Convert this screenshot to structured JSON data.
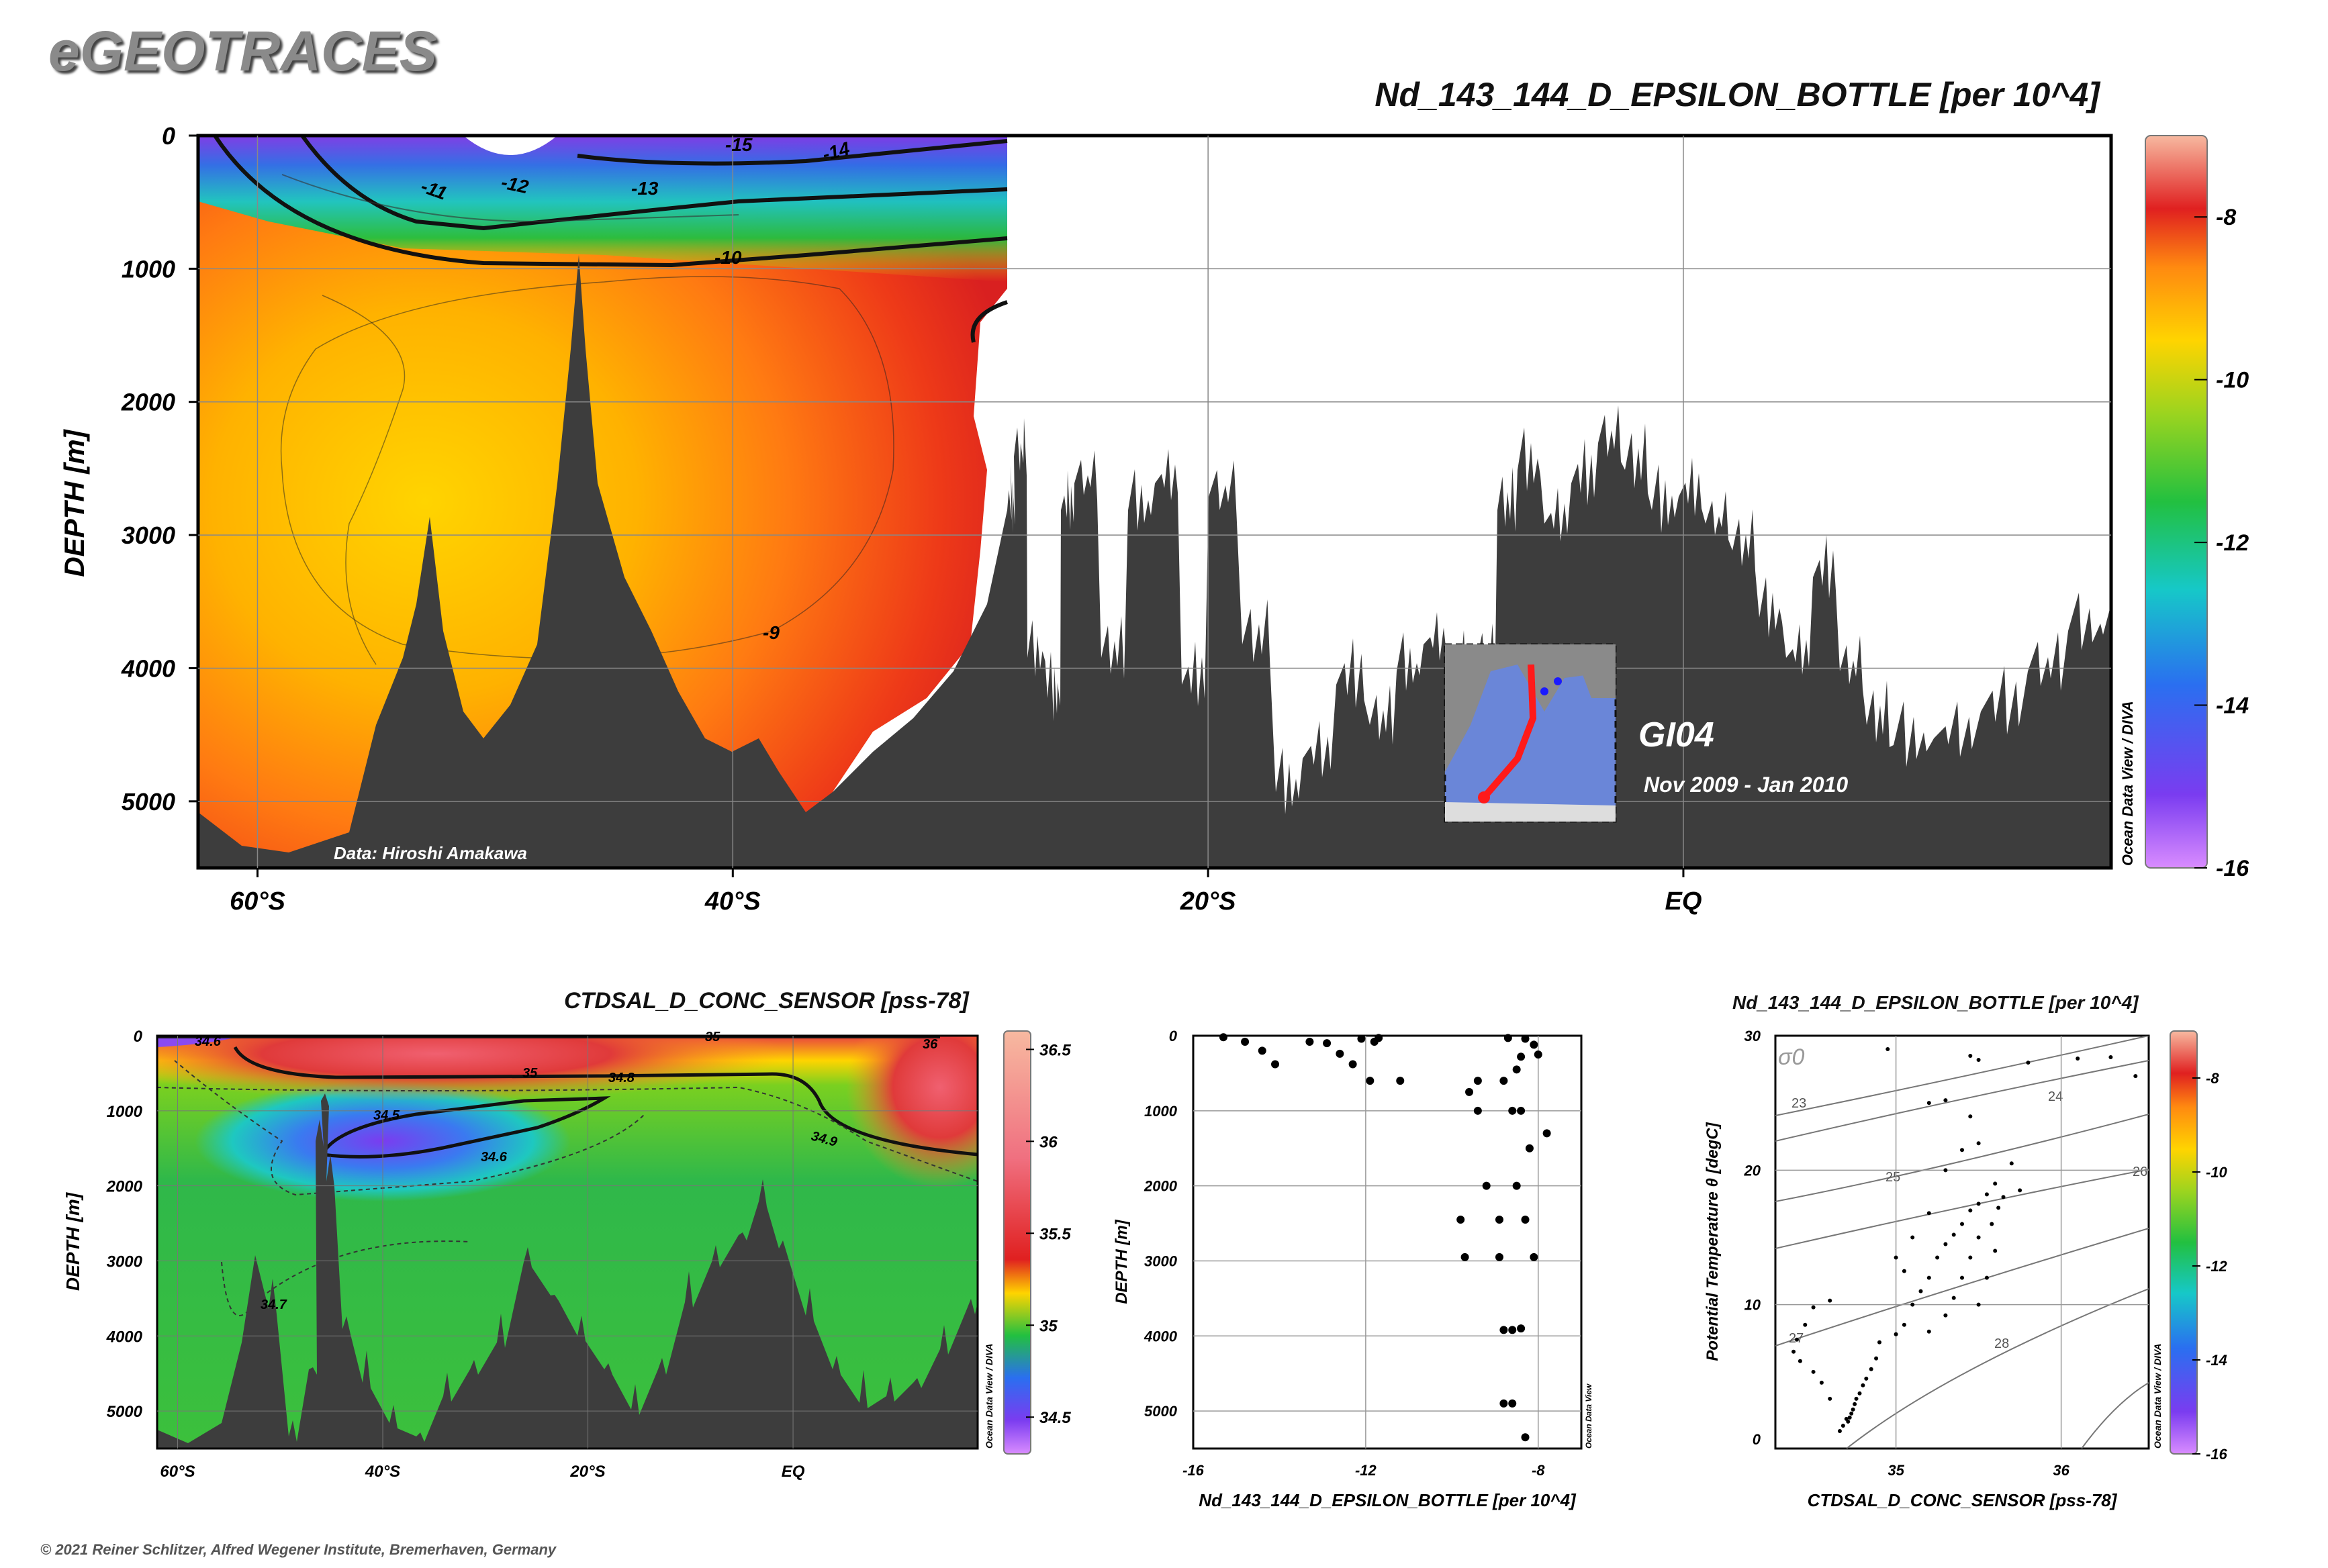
{
  "brand": "eGEOTRACES",
  "main_title": "Nd_143_144_D_EPSILON_BOTTLE [per 10^4]",
  "copyright": "© 2021 Reiner Schlitzer, Alfred Wegener Institute, Bremerhaven, Germany",
  "data_credit": "Data: Hiroshi Amakawa",
  "cruise": {
    "name": "GI04",
    "dates": "Nov 2009 - Jan 2010"
  },
  "watermark": "Ocean Data View / DIVA",
  "watermark_small": "Ocean Data View",
  "colors": {
    "bathymetry": "#3d3d3d",
    "contour": "#111111",
    "frame": "#000000"
  },
  "chart_data": [
    {
      "id": "main_section",
      "type": "heatmap",
      "title": "Nd_143_144_D_EPSILON_BOTTLE [per 10^4]",
      "ylabel": "DEPTH [m]",
      "x_ticks": [
        "60°S",
        "40°S",
        "20°S",
        "EQ"
      ],
      "x_tick_values": [
        -60,
        -40,
        -20,
        0
      ],
      "xlim": [
        -62.5,
        18
      ],
      "y_ticks": [
        "0",
        "1000",
        "2000",
        "3000",
        "4000",
        "5000"
      ],
      "y_tick_values": [
        0,
        1000,
        2000,
        3000,
        4000,
        5000
      ],
      "ylim": [
        0,
        5500
      ],
      "contour_labels": [
        "-15",
        "-14",
        "-13",
        "-12",
        "-11",
        "-10",
        "-9"
      ],
      "colorbar": {
        "ticks": [
          "-8",
          "-10",
          "-12",
          "-14",
          "-16"
        ],
        "values": [
          -8,
          -10,
          -12,
          -14,
          -16
        ],
        "range": [
          -16,
          -7
        ]
      }
    },
    {
      "id": "salinity_section",
      "type": "heatmap",
      "title": "CTDSAL_D_CONC_SENSOR [pss-78]",
      "ylabel": "DEPTH [m]",
      "x_ticks": [
        "60°S",
        "40°S",
        "20°S",
        "EQ"
      ],
      "x_tick_values": [
        -60,
        -40,
        -20,
        0
      ],
      "y_ticks": [
        "0",
        "1000",
        "2000",
        "3000",
        "4000",
        "5000"
      ],
      "y_tick_values": [
        0,
        1000,
        2000,
        3000,
        4000,
        5000
      ],
      "contour_labels": [
        "34.5",
        "34.6",
        "34.8",
        "35",
        "35",
        "36",
        "34.6",
        "34.9",
        "34.7"
      ],
      "colorbar": {
        "ticks": [
          "36.5",
          "36",
          "35.5",
          "35",
          "34.5"
        ],
        "values": [
          36.5,
          36,
          35.5,
          35,
          34.5
        ],
        "range": [
          34.3,
          36.6
        ]
      }
    },
    {
      "id": "profile_scatter",
      "type": "scatter",
      "xlabel": "Nd_143_144_D_EPSILON_BOTTLE [per 10^4]",
      "ylabel": "DEPTH [m]",
      "x_ticks": [
        "-16",
        "-12",
        "-8"
      ],
      "x_tick_values": [
        -16,
        -12,
        -8
      ],
      "xlim": [
        -16,
        -7
      ],
      "y_ticks": [
        "0",
        "1000",
        "2000",
        "3000",
        "4000",
        "5000"
      ],
      "y_tick_values": [
        0,
        1000,
        2000,
        3000,
        4000,
        5000
      ],
      "ylim": [
        0,
        5500
      ],
      "points": [
        [
          -15.3,
          20
        ],
        [
          -14.8,
          80
        ],
        [
          -14.4,
          200
        ],
        [
          -14.1,
          380
        ],
        [
          -13.3,
          80
        ],
        [
          -12.9,
          100
        ],
        [
          -12.6,
          240
        ],
        [
          -12.3,
          380
        ],
        [
          -12.1,
          40
        ],
        [
          -11.9,
          600
        ],
        [
          -11.8,
          80
        ],
        [
          -11.7,
          30
        ],
        [
          -11.2,
          600
        ],
        [
          -8.7,
          30
        ],
        [
          -8.3,
          40
        ],
        [
          -8.1,
          120
        ],
        [
          -8.0,
          250
        ],
        [
          -8.4,
          280
        ],
        [
          -8.5,
          450
        ],
        [
          -8.8,
          600
        ],
        [
          -9.4,
          600
        ],
        [
          -9.6,
          750
        ],
        [
          -9.4,
          1000
        ],
        [
          -8.6,
          1000
        ],
        [
          -8.4,
          1000
        ],
        [
          -7.8,
          1300
        ],
        [
          -8.2,
          1500
        ],
        [
          -9.2,
          2000
        ],
        [
          -8.5,
          2000
        ],
        [
          -9.8,
          2450
        ],
        [
          -8.9,
          2450
        ],
        [
          -8.3,
          2450
        ],
        [
          -8.9,
          2950
        ],
        [
          -9.7,
          2950
        ],
        [
          -8.1,
          2950
        ],
        [
          -8.8,
          3920
        ],
        [
          -8.6,
          3920
        ],
        [
          -8.4,
          3900
        ],
        [
          -8.8,
          4900
        ],
        [
          -8.6,
          4900
        ],
        [
          -8.3,
          5350
        ]
      ]
    },
    {
      "id": "ts_diagram",
      "type": "scatter",
      "title": "Nd_143_144_D_EPSILON_BOTTLE [per 10^4]",
      "xlabel": "CTDSAL_D_CONC_SENSOR [pss-78]",
      "ylabel": "Potential Temperature θ [degC]",
      "x_ticks": [
        "35",
        "36"
      ],
      "x_tick_values": [
        35,
        36
      ],
      "xlim": [
        34.27,
        36.53
      ],
      "y_ticks": [
        "0",
        "10",
        "20",
        "30"
      ],
      "y_tick_values": [
        0,
        10,
        20,
        30
      ],
      "ylim": [
        -0.7,
        30
      ],
      "isopycnal_label": "σ0",
      "isopycnal_values": [
        "23",
        "24",
        "25",
        "26",
        "27",
        "28"
      ],
      "points": [
        [
          34.71,
          1.3
        ],
        [
          34.72,
          1.6
        ],
        [
          34.73,
          1.9
        ],
        [
          34.74,
          2.2
        ],
        [
          34.75,
          2.6
        ],
        [
          34.76,
          3.0
        ],
        [
          34.78,
          3.4
        ],
        [
          34.8,
          4.0
        ],
        [
          34.82,
          4.5
        ],
        [
          34.85,
          5.2
        ],
        [
          34.88,
          6.0
        ],
        [
          34.9,
          7.2
        ],
        [
          34.68,
          1.0
        ],
        [
          34.66,
          0.6
        ],
        [
          34.7,
          1.5
        ],
        [
          34.6,
          3.0
        ],
        [
          34.55,
          4.2
        ],
        [
          34.5,
          5.0
        ],
        [
          34.42,
          5.8
        ],
        [
          34.38,
          6.5
        ],
        [
          34.4,
          7.4
        ],
        [
          34.45,
          8.5
        ],
        [
          34.5,
          9.8
        ],
        [
          34.6,
          10.3
        ],
        [
          35.0,
          7.8
        ],
        [
          35.05,
          8.5
        ],
        [
          35.1,
          10.0
        ],
        [
          35.15,
          11.0
        ],
        [
          35.2,
          12.0
        ],
        [
          35.25,
          13.5
        ],
        [
          35.3,
          14.5
        ],
        [
          35.35,
          15.2
        ],
        [
          35.4,
          16.0
        ],
        [
          35.45,
          17.0
        ],
        [
          35.5,
          17.5
        ],
        [
          35.55,
          18.2
        ],
        [
          35.6,
          19.0
        ],
        [
          35.65,
          18.0
        ],
        [
          35.62,
          17.2
        ],
        [
          35.58,
          16.0
        ],
        [
          35.5,
          15.0
        ],
        [
          35.45,
          13.5
        ],
        [
          35.4,
          12.0
        ],
        [
          35.35,
          10.5
        ],
        [
          35.3,
          9.2
        ],
        [
          35.2,
          8.0
        ],
        [
          35.05,
          12.5
        ],
        [
          35.0,
          13.5
        ],
        [
          35.1,
          15.0
        ],
        [
          35.2,
          16.8
        ],
        [
          35.3,
          20.0
        ],
        [
          35.4,
          21.5
        ],
        [
          35.5,
          22.0
        ],
        [
          35.45,
          24.0
        ],
        [
          35.2,
          25.0
        ],
        [
          35.3,
          25.2
        ],
        [
          35.45,
          28.5
        ],
        [
          35.5,
          28.2
        ],
        [
          35.8,
          28.0
        ],
        [
          36.1,
          28.3
        ],
        [
          36.3,
          28.4
        ],
        [
          36.45,
          27.0
        ],
        [
          34.95,
          29.0
        ],
        [
          35.7,
          20.5
        ],
        [
          35.75,
          18.5
        ],
        [
          35.6,
          14.0
        ],
        [
          35.55,
          12.0
        ],
        [
          35.5,
          10.0
        ]
      ]
    }
  ]
}
